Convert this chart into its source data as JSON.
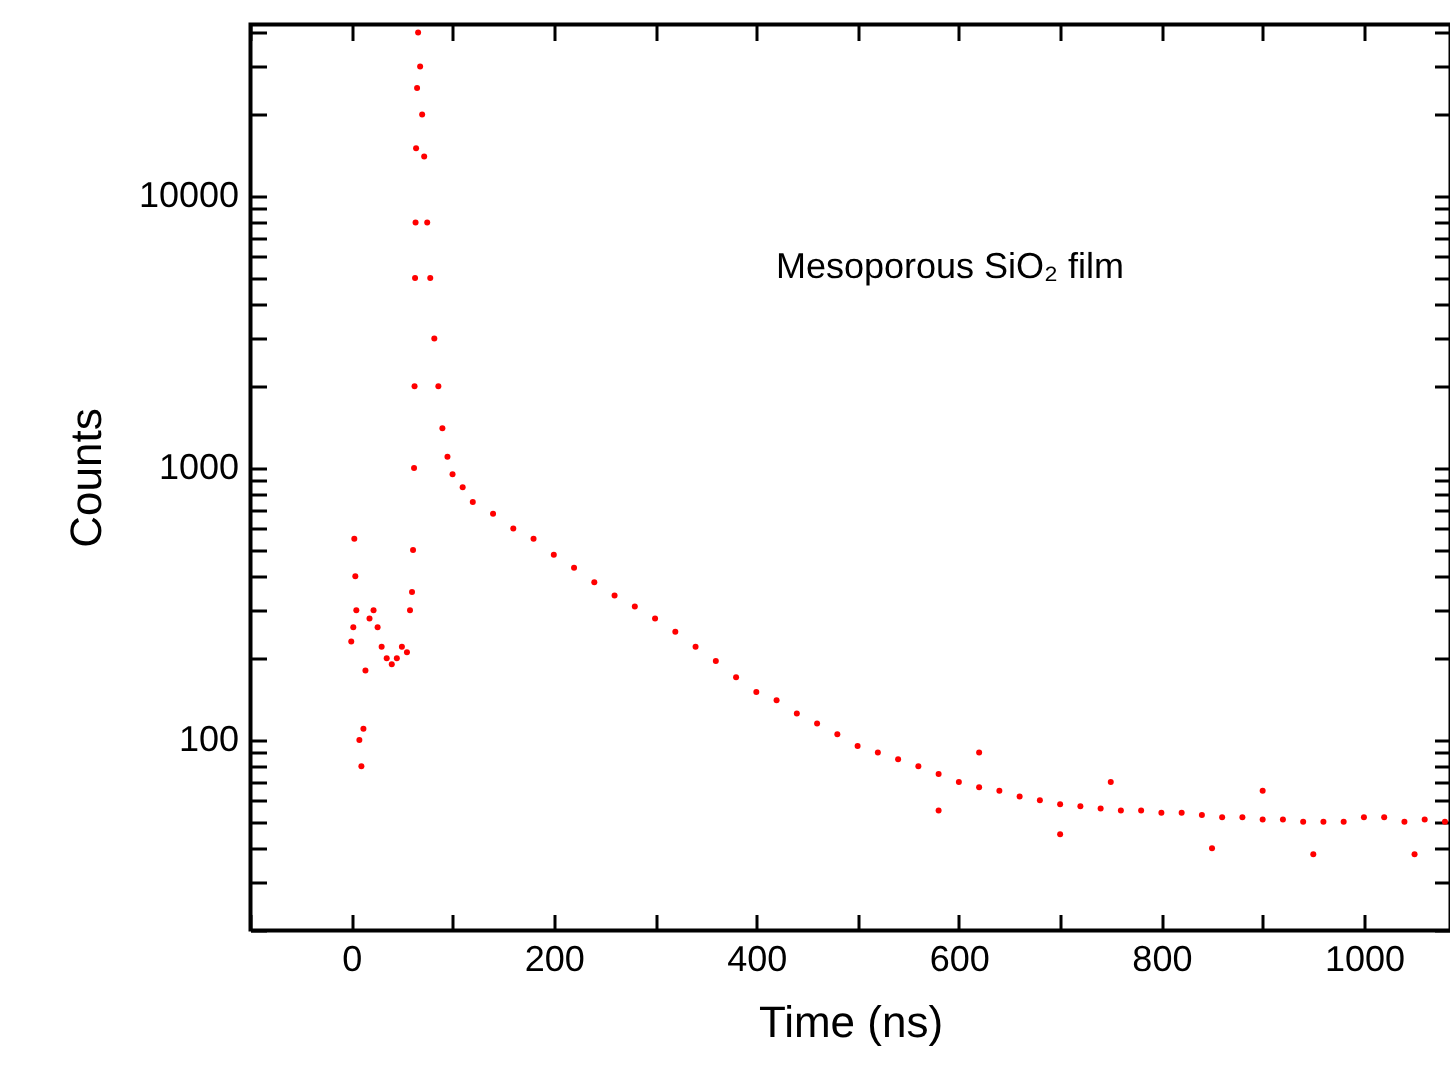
{
  "chart_data": {
    "type": "scatter",
    "xlabel": "Time (ns)",
    "ylabel": "Counts",
    "annotations": [
      "Mesoporous SiO₂ film"
    ],
    "log": "y",
    "marker": "circle",
    "grid": false,
    "xlim": [
      -100,
      1085
    ],
    "ylim": [
      20,
      43000
    ],
    "xticks": [
      {
        "value": -100,
        "label": null
      },
      0,
      {
        "value": 100,
        "label": null
      },
      200,
      {
        "value": 300,
        "label": null
      },
      400,
      {
        "value": 500,
        "label": null
      },
      600,
      {
        "value": 700,
        "label": null
      },
      800,
      {
        "value": 900,
        "label": null
      },
      1000
    ],
    "yticks": [
      {
        "value": 20,
        "label": null
      },
      {
        "value": 30,
        "label": null
      },
      {
        "value": 40,
        "label": null
      },
      {
        "value": 50,
        "label": null
      },
      {
        "value": 60,
        "label": null
      },
      {
        "value": 70,
        "label": null
      },
      {
        "value": 80,
        "label": null
      },
      {
        "value": 90,
        "label": null
      },
      100,
      {
        "value": 200,
        "label": null
      },
      {
        "value": 300,
        "label": null
      },
      {
        "value": 400,
        "label": null
      },
      {
        "value": 500,
        "label": null
      },
      {
        "value": 600,
        "label": null
      },
      {
        "value": 700,
        "label": null
      },
      {
        "value": 800,
        "label": null
      },
      {
        "value": 900,
        "label": null
      },
      1000,
      {
        "value": 2000,
        "label": null
      },
      {
        "value": 3000,
        "label": null
      },
      {
        "value": 4000,
        "label": null
      },
      {
        "value": 5000,
        "label": null
      },
      {
        "value": 6000,
        "label": null
      },
      {
        "value": 7000,
        "label": null
      },
      {
        "value": 8000,
        "label": null
      },
      {
        "value": 9000,
        "label": null
      },
      10000,
      {
        "value": 20000,
        "label": null
      },
      {
        "value": 30000,
        "label": null
      },
      {
        "value": 40000,
        "label": null
      }
    ],
    "x": [
      0,
      2,
      3,
      4,
      5,
      8,
      10,
      12,
      14,
      18,
      22,
      26,
      30,
      35,
      40,
      45,
      50,
      55,
      58,
      60,
      61,
      62,
      62.5,
      63,
      63.5,
      64,
      65,
      66,
      68,
      70,
      72,
      75,
      78,
      82,
      86,
      90,
      95,
      100,
      110,
      120,
      140,
      160,
      180,
      200,
      220,
      240,
      260,
      280,
      300,
      320,
      340,
      360,
      380,
      400,
      420,
      440,
      460,
      480,
      500,
      520,
      540,
      560,
      580,
      600,
      620,
      640,
      660,
      680,
      700,
      720,
      740,
      760,
      780,
      800,
      820,
      840,
      860,
      880,
      900,
      920,
      940,
      960,
      980,
      1000,
      1020,
      1040,
      1060,
      1080,
      580,
      620,
      700,
      750,
      850,
      900,
      950,
      1050
    ],
    "series": [
      {
        "color": "#ff0000",
        "values": [
          230,
          260,
          550,
          400,
          300,
          100,
          80,
          110,
          180,
          280,
          300,
          260,
          220,
          200,
          190,
          200,
          220,
          210,
          300,
          350,
          500,
          1000,
          2000,
          5000,
          8000,
          15000,
          25000,
          40000,
          30000,
          20000,
          14000,
          8000,
          5000,
          3000,
          2000,
          1400,
          1100,
          950,
          850,
          750,
          680,
          600,
          550,
          480,
          430,
          380,
          340,
          310,
          280,
          250,
          220,
          195,
          170,
          150,
          140,
          125,
          115,
          105,
          95,
          90,
          85,
          80,
          75,
          70,
          67,
          65,
          62,
          60,
          58,
          57,
          56,
          55,
          55,
          54,
          54,
          53,
          52,
          52,
          51,
          51,
          50,
          50,
          50,
          52,
          52,
          50,
          51,
          50,
          55,
          90,
          45,
          70,
          40,
          65,
          38,
          38
        ]
      }
    ]
  }
}
